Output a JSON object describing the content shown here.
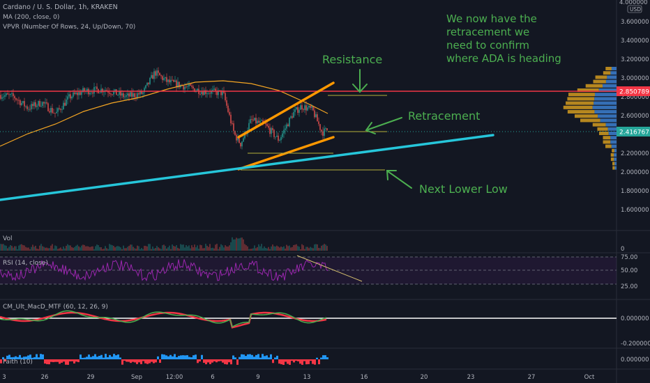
{
  "header": {
    "title": "Cardano / U. S. Dollar, 1h, KRAKEN",
    "studies": [
      "MA (200, close, 0)",
      "VPVR (Number Of Rows, 24, Up/Down, 70)"
    ]
  },
  "price_scale": {
    "currency": "USD",
    "top_value": "4.000000",
    "ticks": [
      "3.600000",
      "3.400000",
      "3.200000",
      "3.000000",
      "2.800000",
      "2.600000",
      "2.400000",
      "2.200000",
      "2.000000",
      "1.800000",
      "1.600000"
    ],
    "resistance_badge": "2.850789",
    "last_price_badge": "2.416767"
  },
  "annotations": {
    "note": "We now have the\nretracement we\nneed to confirm\nwhere ADA is heading",
    "resistance": "Resistance",
    "retracement": "Retracement",
    "next_lower_low": "Next Lower Low"
  },
  "panes": {
    "volume": {
      "label": "Vol",
      "axis": "0"
    },
    "rsi": {
      "label": "RSI (14, close)",
      "ticks": [
        "75.00",
        "50.00",
        "25.00"
      ]
    },
    "macd": {
      "label": "CM_Ult_MacD_MTF (60, 12, 26, 9)",
      "ticks": [
        "0.000000",
        "-0.200000"
      ]
    },
    "faith": {
      "label": "Faith (10)",
      "ticks": [
        "0.000000"
      ]
    }
  },
  "x_axis": {
    "labels": [
      "3",
      "26",
      "29",
      "Sep",
      "12:00",
      "6",
      "9",
      "13",
      "16",
      "20",
      "23",
      "27",
      "Oct"
    ]
  },
  "colors": {
    "background": "#131722",
    "candle_up": "#26a69a",
    "candle_down": "#ef5350",
    "ma": "#f5a623",
    "channel": "#ff9800",
    "trendline": "#26c6da",
    "resistance_line": "#f23645",
    "annotation": "#4caf50",
    "rsi": "#9c27b0",
    "faith_up": "#2196f3",
    "faith_down": "#f23645"
  },
  "chart_data": {
    "type": "candlestick",
    "symbol": "ADAUSD",
    "interval": "1h",
    "y_range": [
      1.5,
      4.0
    ],
    "series_summary": [
      {
        "x": "Aug 23",
        "y": 2.82
      },
      {
        "x": "Aug 25",
        "y": 2.62
      },
      {
        "x": "Aug 27",
        "y": 2.78
      },
      {
        "x": "Aug 29",
        "y": 2.88
      },
      {
        "x": "Sep 1",
        "y": 2.84
      },
      {
        "x": "Sep 2",
        "y": 3.06
      },
      {
        "x": "Sep 4",
        "y": 2.9
      },
      {
        "x": "Sep 6",
        "y": 2.88
      },
      {
        "x": "Sep 7",
        "y": 2.36
      },
      {
        "x": "Sep 8",
        "y": 2.55
      },
      {
        "x": "Sep 10",
        "y": 2.35
      },
      {
        "x": "Sep 12",
        "y": 2.68
      },
      {
        "x": "Sep 13",
        "y": 2.42
      }
    ],
    "resistance_level": 2.850789,
    "last_price": 2.416767,
    "retracement_level": 2.42,
    "next_lower_low_level": 2.02
  }
}
